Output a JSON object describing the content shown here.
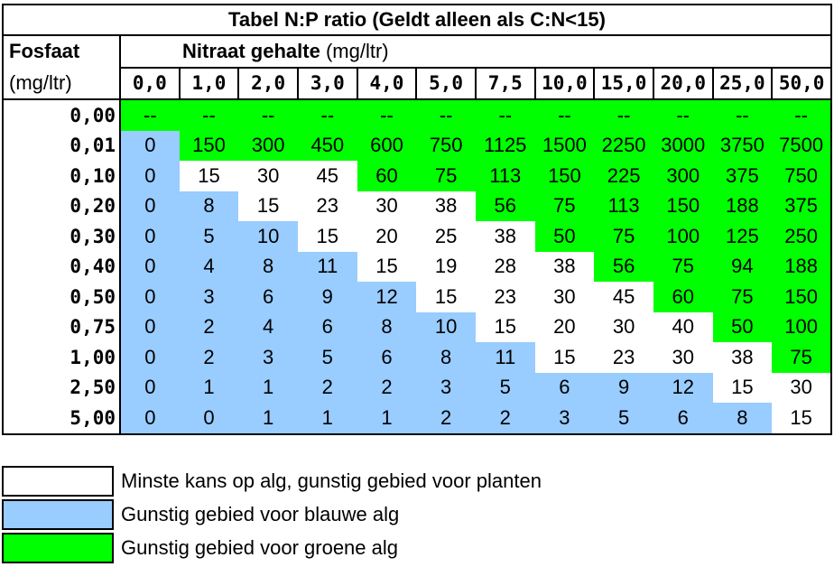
{
  "title": "Tabel N:P ratio (Geldt alleen als C:N<15)",
  "row_header": {
    "label": "Fosfaat",
    "unit": "(mg/ltr)"
  },
  "col_header": {
    "label": "Nitraat gehalte",
    "unit": "(mg/ltr)"
  },
  "columns": [
    "0,0",
    "1,0",
    "2,0",
    "3,0",
    "4,0",
    "5,0",
    "7,5",
    "10,0",
    "15,0",
    "20,0",
    "25,0",
    "50,0"
  ],
  "rows": [
    {
      "label": "0,00",
      "values": [
        "--",
        "--",
        "--",
        "--",
        "--",
        "--",
        "--",
        "--",
        "--",
        "--",
        "--",
        "--"
      ],
      "zones": [
        "green",
        "green",
        "green",
        "green",
        "green",
        "green",
        "green",
        "green",
        "green",
        "green",
        "green",
        "green"
      ]
    },
    {
      "label": "0,01",
      "values": [
        "0",
        "150",
        "300",
        "450",
        "600",
        "750",
        "1125",
        "1500",
        "2250",
        "3000",
        "3750",
        "7500"
      ],
      "zones": [
        "blue",
        "green",
        "green",
        "green",
        "green",
        "green",
        "green",
        "green",
        "green",
        "green",
        "green",
        "green"
      ]
    },
    {
      "label": "0,10",
      "values": [
        "0",
        "15",
        "30",
        "45",
        "60",
        "75",
        "113",
        "150",
        "225",
        "300",
        "375",
        "750"
      ],
      "zones": [
        "blue",
        "white",
        "white",
        "white",
        "green",
        "green",
        "green",
        "green",
        "green",
        "green",
        "green",
        "green"
      ]
    },
    {
      "label": "0,20",
      "values": [
        "0",
        "8",
        "15",
        "23",
        "30",
        "38",
        "56",
        "75",
        "113",
        "150",
        "188",
        "375"
      ],
      "zones": [
        "blue",
        "blue",
        "white",
        "white",
        "white",
        "white",
        "green",
        "green",
        "green",
        "green",
        "green",
        "green"
      ]
    },
    {
      "label": "0,30",
      "values": [
        "0",
        "5",
        "10",
        "15",
        "20",
        "25",
        "38",
        "50",
        "75",
        "100",
        "125",
        "250"
      ],
      "zones": [
        "blue",
        "blue",
        "blue",
        "white",
        "white",
        "white",
        "white",
        "green",
        "green",
        "green",
        "green",
        "green"
      ]
    },
    {
      "label": "0,40",
      "values": [
        "0",
        "4",
        "8",
        "11",
        "15",
        "19",
        "28",
        "38",
        "56",
        "75",
        "94",
        "188"
      ],
      "zones": [
        "blue",
        "blue",
        "blue",
        "blue",
        "white",
        "white",
        "white",
        "white",
        "green",
        "green",
        "green",
        "green"
      ]
    },
    {
      "label": "0,50",
      "values": [
        "0",
        "3",
        "6",
        "9",
        "12",
        "15",
        "23",
        "30",
        "45",
        "60",
        "75",
        "150"
      ],
      "zones": [
        "blue",
        "blue",
        "blue",
        "blue",
        "blue",
        "white",
        "white",
        "white",
        "white",
        "green",
        "green",
        "green"
      ]
    },
    {
      "label": "0,75",
      "values": [
        "0",
        "2",
        "4",
        "6",
        "8",
        "10",
        "15",
        "20",
        "30",
        "40",
        "50",
        "100"
      ],
      "zones": [
        "blue",
        "blue",
        "blue",
        "blue",
        "blue",
        "blue",
        "white",
        "white",
        "white",
        "white",
        "green",
        "green"
      ]
    },
    {
      "label": "1,00",
      "values": [
        "0",
        "2",
        "3",
        "5",
        "6",
        "8",
        "11",
        "15",
        "23",
        "30",
        "38",
        "75"
      ],
      "zones": [
        "blue",
        "blue",
        "blue",
        "blue",
        "blue",
        "blue",
        "blue",
        "white",
        "white",
        "white",
        "white",
        "green"
      ]
    },
    {
      "label": "2,50",
      "values": [
        "0",
        "1",
        "1",
        "2",
        "2",
        "3",
        "5",
        "6",
        "9",
        "12",
        "15",
        "30"
      ],
      "zones": [
        "blue",
        "blue",
        "blue",
        "blue",
        "blue",
        "blue",
        "blue",
        "blue",
        "blue",
        "blue",
        "white",
        "white"
      ]
    },
    {
      "label": "5,00",
      "values": [
        "0",
        "0",
        "1",
        "1",
        "1",
        "2",
        "2",
        "3",
        "5",
        "6",
        "8",
        "15"
      ],
      "zones": [
        "blue",
        "blue",
        "blue",
        "blue",
        "blue",
        "blue",
        "blue",
        "blue",
        "blue",
        "blue",
        "blue",
        "white"
      ]
    }
  ],
  "colors": {
    "white": "#ffffff",
    "blue": "#99ccff",
    "green": "#00ff00"
  },
  "legend": [
    {
      "zone": "white",
      "text": "Minste kans op alg, gunstig gebied voor planten"
    },
    {
      "zone": "blue",
      "text": "Gunstig gebied voor blauwe alg"
    },
    {
      "zone": "green",
      "text": "Gunstig gebied voor groene alg"
    }
  ]
}
